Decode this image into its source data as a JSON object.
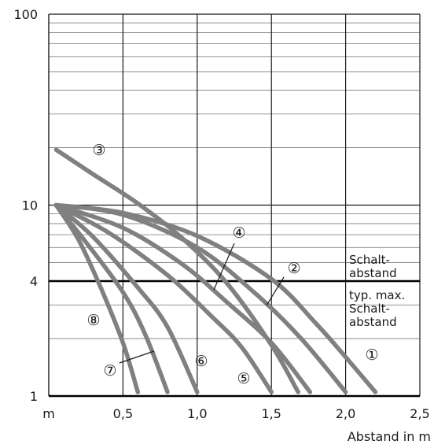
{
  "chart_data": {
    "type": "line",
    "xlabel": "Abstand in m",
    "x_unit_label": "m",
    "x_ticks": [
      "0,5",
      "1,0",
      "1,5",
      "2,0",
      "2,5"
    ],
    "x_tick_values": [
      0.5,
      1.0,
      1.5,
      2.0,
      2.5
    ],
    "xlim": [
      0,
      2.5
    ],
    "y_scale": "log",
    "ylim": [
      1,
      100
    ],
    "y_ticks": [
      "1",
      "4",
      "10",
      "100"
    ],
    "y_tick_values": [
      1,
      4,
      10,
      100
    ],
    "grid": true,
    "threshold_lines": [
      {
        "y": 4,
        "label_lines": [
          "Schalt-",
          "abstand"
        ],
        "label_lines_below": [
          "typ. max.",
          "Schalt-",
          "abstand"
        ]
      },
      {
        "y": 1
      }
    ],
    "series": [
      {
        "name": "①",
        "x": [
          0.05,
          0.5,
          1.0,
          1.5,
          1.8,
          2.0,
          2.2
        ],
        "y": [
          10,
          9.1,
          6.9,
          4.1,
          2.4,
          1.6,
          1.05
        ]
      },
      {
        "name": "②",
        "x": [
          0.05,
          0.5,
          1.0,
          1.4,
          1.7,
          2.0
        ],
        "y": [
          10,
          8.9,
          6.0,
          3.4,
          2.0,
          1.05
        ]
      },
      {
        "name": "③",
        "x": [
          0.05,
          0.3,
          0.6,
          0.9,
          1.2,
          1.5,
          1.68
        ],
        "y": [
          19.5,
          14.5,
          10.2,
          6.7,
          3.9,
          1.85,
          1.05
        ]
      },
      {
        "name": "④",
        "x": [
          0.05,
          0.5,
          0.9,
          1.2,
          1.5,
          1.76
        ],
        "y": [
          10,
          7.6,
          4.9,
          3.1,
          1.9,
          1.05
        ]
      },
      {
        "name": "⑤",
        "x": [
          0.05,
          0.4,
          0.8,
          1.1,
          1.3,
          1.5
        ],
        "y": [
          10,
          7.2,
          4.3,
          2.6,
          1.8,
          1.05
        ]
      },
      {
        "name": "⑥",
        "x": [
          0.05,
          0.3,
          0.6,
          0.8,
          1.0
        ],
        "y": [
          10,
          6.8,
          3.7,
          2.3,
          1.05
        ]
      },
      {
        "name": "⑦",
        "x": [
          0.05,
          0.25,
          0.5,
          0.65,
          0.8
        ],
        "y": [
          10,
          6.4,
          3.5,
          2.1,
          1.05
        ]
      },
      {
        "name": "⑧",
        "x": [
          0.05,
          0.2,
          0.35,
          0.5,
          0.6
        ],
        "y": [
          10,
          6.6,
          3.7,
          1.9,
          1.05
        ]
      }
    ]
  }
}
